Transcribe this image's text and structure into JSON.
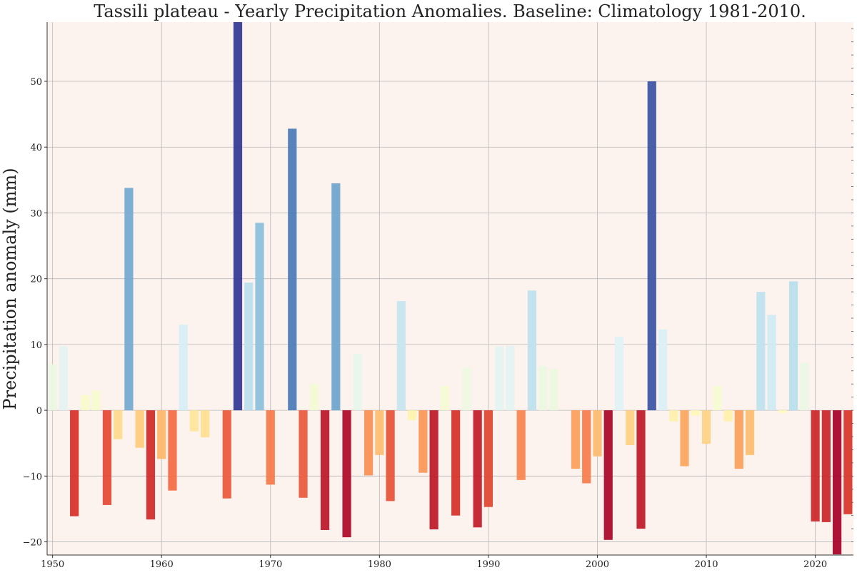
{
  "chart_data": {
    "type": "bar",
    "title": "Tassili plateau - Yearly Precipitation Anomalies. Baseline: Climatology 1981-2010.",
    "xlabel": "",
    "ylabel": "Precipitation anomaly (mm)",
    "xlim": [
      1949.5,
      2023.5
    ],
    "ylim": [
      -22,
      59
    ],
    "xticks": [
      1950,
      1960,
      1970,
      1980,
      1990,
      2000,
      2010,
      2020
    ],
    "yticks": [
      -20,
      -10,
      0,
      10,
      20,
      30,
      40,
      50
    ],
    "grid": true,
    "categories": [
      1950,
      1951,
      1952,
      1953,
      1954,
      1955,
      1956,
      1957,
      1958,
      1959,
      1960,
      1961,
      1962,
      1963,
      1964,
      1965,
      1966,
      1967,
      1968,
      1969,
      1970,
      1971,
      1972,
      1973,
      1974,
      1975,
      1976,
      1977,
      1978,
      1979,
      1980,
      1981,
      1982,
      1983,
      1984,
      1985,
      1986,
      1987,
      1988,
      1989,
      1990,
      1991,
      1992,
      1993,
      1994,
      1995,
      1996,
      1997,
      1998,
      1999,
      2000,
      2001,
      2002,
      2003,
      2004,
      2005,
      2006,
      2007,
      2008,
      2009,
      2010,
      2011,
      2012,
      2013,
      2014,
      2015,
      2016,
      2017,
      2018,
      2019,
      2020,
      2021,
      2022,
      2023
    ],
    "values": [
      7.0,
      9.7,
      -16.1,
      2.3,
      3.0,
      -14.4,
      -4.4,
      33.8,
      -5.7,
      -16.6,
      -7.4,
      -12.2,
      13.0,
      -3.2,
      -4.1,
      0,
      -13.4,
      59.0,
      19.4,
      28.5,
      -11.3,
      0,
      42.8,
      -13.3,
      4.0,
      -18.2,
      34.5,
      -19.3,
      8.6,
      -9.9,
      -6.8,
      -13.8,
      16.6,
      -1.5,
      -9.5,
      -18.1,
      3.7,
      -16.0,
      6.5,
      -17.8,
      -14.7,
      9.7,
      9.8,
      -10.6,
      18.2,
      6.7,
      6.3,
      0,
      -8.9,
      -11.1,
      -7.0,
      -19.7,
      11.2,
      -5.3,
      -18.0,
      50.0,
      12.3,
      -1.7,
      -8.5,
      -0.8,
      -5.1,
      3.7,
      -1.7,
      -8.9,
      -6.8,
      18.0,
      14.5,
      -0.4,
      19.6,
      7.2,
      -16.9,
      -17.0,
      -21.9,
      -15.8
    ]
  }
}
